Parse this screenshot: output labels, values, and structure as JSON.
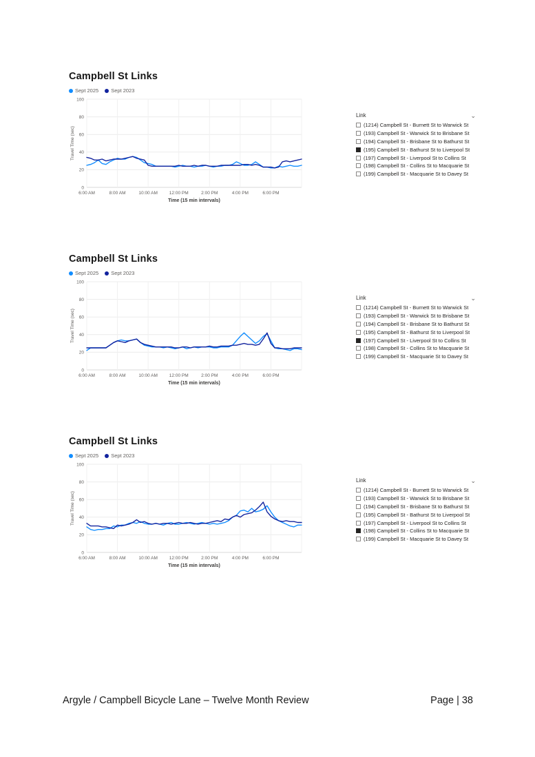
{
  "page": {
    "footer_left": "Argyle / Campbell Bicycle Lane – Twelve Month Review",
    "footer_right": "Page | 38"
  },
  "colors": {
    "series_sept_2025": "#118DFF",
    "series_sept_2023": "#12239E",
    "grid": "#ececec",
    "axis_text": "#605E5C"
  },
  "charts": [
    {
      "title": "Campbell St Links",
      "legend": [
        {
          "label": "Sept 2025",
          "color": "#118DFF"
        },
        {
          "label": "Sept 2023",
          "color": "#12239E"
        }
      ],
      "chart_data": {
        "type": "line",
        "title": "Campbell St Links",
        "xlabel": "Time (15 min intervals)",
        "ylabel": "Travel Time (sec)",
        "ylim": [
          0,
          100
        ],
        "yticks": [
          0,
          20,
          40,
          60,
          80,
          100
        ],
        "xticks": [
          "6:00 AM",
          "8:00 AM",
          "10:00 AM",
          "12:00 PM",
          "2:00 PM",
          "4:00 PM",
          "6:00 PM"
        ],
        "x_interval_min": 15,
        "grid": true,
        "legend_position": "top-left",
        "series": [
          {
            "name": "Sept 2025",
            "color": "#118DFF",
            "values": [
              25,
              26,
              28,
              31,
              27,
              26,
              29,
              31,
              33,
              32,
              32,
              34,
              35,
              34,
              31,
              28,
              27,
              26,
              24,
              24,
              24,
              24,
              24,
              23,
              24,
              25,
              24,
              24,
              23,
              24,
              24,
              25,
              24,
              23,
              24,
              24,
              25,
              25,
              26,
              29,
              27,
              25,
              25,
              26,
              29,
              26,
              23,
              23,
              22,
              22,
              24,
              23,
              24,
              25,
              24,
              24,
              25
            ]
          },
          {
            "name": "Sept 2023",
            "color": "#12239E",
            "values": [
              34,
              33,
              31,
              31,
              32,
              30,
              31,
              32,
              32,
              32,
              33,
              34,
              35,
              33,
              32,
              31,
              25,
              24,
              24,
              24,
              24,
              24,
              24,
              24,
              25,
              24,
              24,
              24,
              25,
              24,
              25,
              25,
              24,
              24,
              24,
              25,
              25,
              25,
              25,
              25,
              25,
              26,
              26,
              25,
              26,
              25,
              23,
              23,
              23,
              22,
              23,
              29,
              30,
              29,
              30,
              31,
              32
            ]
          }
        ]
      },
      "links": {
        "header": "Link",
        "items": [
          {
            "label": "(1214) Campbell St - Burnett St to Warwick St",
            "checked": false
          },
          {
            "label": "(193) Campbell St - Warwick St to Brisbane St",
            "checked": false
          },
          {
            "label": "(194) Campbell St - Brisbane St to Bathurst St",
            "checked": false
          },
          {
            "label": "(195) Campbell St - Bathurst St to Liverpool St",
            "checked": true
          },
          {
            "label": "(197) Campbell St - Liverpool St to Collins St",
            "checked": false
          },
          {
            "label": "(198) Campbell St - Collins St to Macquarie St",
            "checked": false
          },
          {
            "label": "(199) Campbell St - Macquarie St to Davey St",
            "checked": false
          }
        ]
      }
    },
    {
      "title": "Campbell St Links",
      "legend": [
        {
          "label": "Sept 2025",
          "color": "#118DFF"
        },
        {
          "label": "Sept 2023",
          "color": "#12239E"
        }
      ],
      "chart_data": {
        "type": "line",
        "title": "Campbell St Links",
        "xlabel": "Time (15 min intervals)",
        "ylabel": "Travel Time (sec)",
        "ylim": [
          0,
          100
        ],
        "yticks": [
          0,
          20,
          40,
          60,
          80,
          100
        ],
        "xticks": [
          "6:00 AM",
          "8:00 AM",
          "10:00 AM",
          "12:00 PM",
          "2:00 PM",
          "4:00 PM",
          "6:00 PM"
        ],
        "x_interval_min": 15,
        "grid": true,
        "legend_position": "top-left",
        "series": [
          {
            "name": "Sept 2025",
            "color": "#118DFF",
            "values": [
              22,
              25,
              25,
              25,
              25,
              25,
              28,
              31,
              33,
              34,
              33,
              33,
              34,
              35,
              31,
              28,
              27,
              26,
              26,
              26,
              25,
              26,
              25,
              24,
              25,
              26,
              24,
              25,
              26,
              25,
              26,
              26,
              26,
              25,
              25,
              26,
              26,
              26,
              28,
              33,
              38,
              42,
              38,
              34,
              30,
              33,
              38,
              41,
              33,
              25,
              24,
              24,
              23,
              22,
              24,
              24,
              23
            ]
          },
          {
            "name": "Sept 2023",
            "color": "#12239E",
            "values": [
              25,
              25,
              25,
              25,
              25,
              25,
              28,
              31,
              33,
              32,
              31,
              33,
              34,
              35,
              31,
              29,
              28,
              27,
              26,
              26,
              26,
              26,
              26,
              25,
              25,
              26,
              26,
              25,
              26,
              26,
              26,
              26,
              27,
              26,
              26,
              27,
              27,
              27,
              28,
              28,
              29,
              30,
              29,
              29,
              28,
              29,
              35,
              42,
              30,
              25,
              25,
              24,
              24,
              24,
              25,
              25,
              25
            ]
          }
        ]
      },
      "links": {
        "header": "Link",
        "items": [
          {
            "label": "(1214) Campbell St - Burnett St to Warwick St",
            "checked": false
          },
          {
            "label": "(193) Campbell St - Warwick St to Brisbane St",
            "checked": false
          },
          {
            "label": "(194) Campbell St - Brisbane St to Bathurst St",
            "checked": false
          },
          {
            "label": "(195) Campbell St - Bathurst St to Liverpool St",
            "checked": false
          },
          {
            "label": "(197) Campbell St - Liverpool St to Collins St",
            "checked": true
          },
          {
            "label": "(198) Campbell St - Collins St to Macquarie St",
            "checked": false
          },
          {
            "label": "(199) Campbell St - Macquarie St to Davey St",
            "checked": false
          }
        ]
      }
    },
    {
      "title": "Campbell St Links",
      "legend": [
        {
          "label": "Sept 2025",
          "color": "#118DFF"
        },
        {
          "label": "Sept 2023",
          "color": "#12239E"
        }
      ],
      "chart_data": {
        "type": "line",
        "title": "Campbell St Links",
        "xlabel": "Time (15 min intervals)",
        "ylabel": "Travel Time (sec)",
        "ylim": [
          0,
          100
        ],
        "yticks": [
          0,
          20,
          40,
          60,
          80,
          100
        ],
        "xticks": [
          "6:00 AM",
          "8:00 AM",
          "10:00 AM",
          "12:00 PM",
          "2:00 PM",
          "4:00 PM",
          "6:00 PM"
        ],
        "x_interval_min": 15,
        "grid": true,
        "legend_position": "top-left",
        "series": [
          {
            "name": "Sept 2025",
            "color": "#118DFF",
            "values": [
              29,
              26,
              25,
              26,
              26,
              27,
              27,
              30,
              29,
              31,
              31,
              33,
              34,
              33,
              35,
              33,
              32,
              32,
              33,
              32,
              31,
              33,
              34,
              32,
              32,
              33,
              34,
              33,
              32,
              33,
              34,
              33,
              32,
              33,
              32,
              33,
              34,
              36,
              40,
              42,
              47,
              48,
              46,
              50,
              46,
              47,
              49,
              53,
              46,
              40,
              36,
              34,
              32,
              30,
              29,
              31,
              31
            ]
          },
          {
            "name": "Sept 2023",
            "color": "#12239E",
            "values": [
              33,
              30,
              30,
              30,
              29,
              29,
              28,
              27,
              31,
              30,
              31,
              32,
              34,
              37,
              34,
              35,
              33,
              32,
              33,
              32,
              33,
              33,
              32,
              33,
              34,
              33,
              33,
              34,
              33,
              32,
              33,
              33,
              34,
              35,
              36,
              35,
              38,
              37,
              40,
              42,
              40,
              43,
              44,
              45,
              48,
              52,
              57,
              46,
              41,
              38,
              36,
              35,
              36,
              35,
              35,
              34,
              34
            ]
          }
        ]
      },
      "links": {
        "header": "Link",
        "items": [
          {
            "label": "(1214) Campbell St - Burnett St to Warwick St",
            "checked": false
          },
          {
            "label": "(193) Campbell St - Warwick St to Brisbane St",
            "checked": false
          },
          {
            "label": "(194) Campbell St - Brisbane St to Bathurst St",
            "checked": false
          },
          {
            "label": "(195) Campbell St - Bathurst St to Liverpool St",
            "checked": false
          },
          {
            "label": "(197) Campbell St - Liverpool St to Collins St",
            "checked": false
          },
          {
            "label": "(198) Campbell St - Collins St to Macquarie St",
            "checked": true
          },
          {
            "label": "(199) Campbell St - Macquarie St to Davey St",
            "checked": false
          }
        ]
      }
    }
  ]
}
